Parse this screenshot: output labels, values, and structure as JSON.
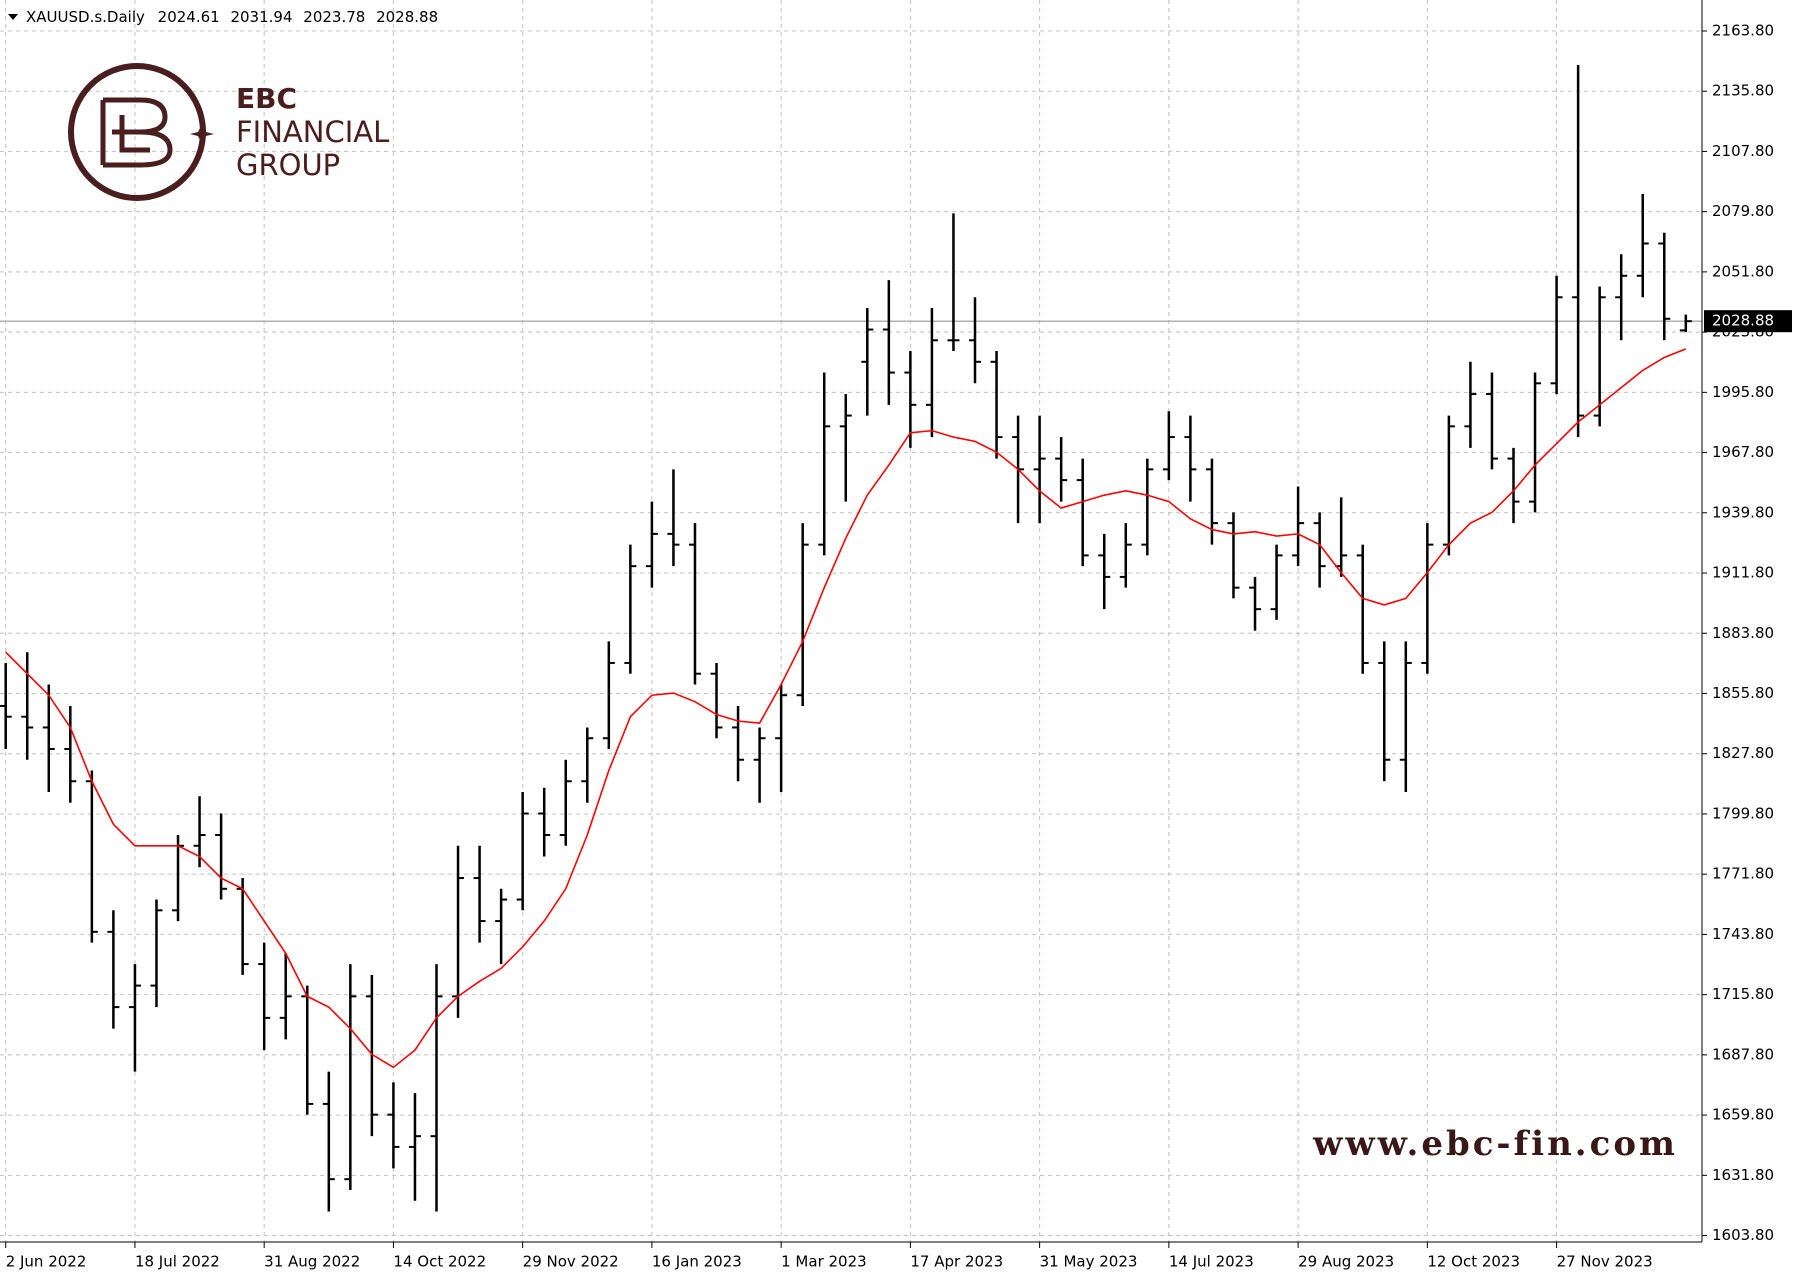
{
  "chart_data": {
    "type": "ohlc",
    "symbol": "XAUUSD.s.Daily",
    "categories": [
      "2 Jun 2022",
      null,
      null,
      null,
      null,
      null,
      "18 Jul 2022",
      null,
      null,
      null,
      null,
      null,
      "31 Aug 2022",
      null,
      null,
      null,
      null,
      null,
      "14 Oct 2022",
      null,
      null,
      null,
      null,
      null,
      "29 Nov 2022",
      null,
      null,
      null,
      null,
      null,
      "16 Jan 2023",
      null,
      null,
      null,
      null,
      null,
      "1 Mar 2023",
      null,
      null,
      null,
      null,
      null,
      "17 Apr 2023",
      null,
      null,
      null,
      null,
      null,
      "31 May 2023",
      null,
      null,
      null,
      null,
      null,
      "14 Jul 2023",
      null,
      null,
      null,
      null,
      null,
      "29 Aug 2023",
      null,
      null,
      null,
      null,
      null,
      "12 Oct 2023",
      null,
      null,
      null,
      null,
      null,
      "27 Nov 2023",
      null,
      null,
      null,
      null,
      null,
      null
    ],
    "ohlc": {
      "color": "#000000",
      "open": [
        1850,
        1845,
        1840,
        1830,
        1815,
        1745,
        1710,
        1720,
        1755,
        1785,
        1790,
        1765,
        1730,
        1705,
        1715,
        1665,
        1630,
        1715,
        1660,
        1645,
        1650,
        1715,
        1770,
        1750,
        1760,
        1800,
        1790,
        1815,
        1835,
        1870,
        1915,
        1930,
        1925,
        1865,
        1840,
        1825,
        1835,
        1855,
        1925,
        1980,
        2010,
        2025,
        2005,
        1990,
        2020,
        2020,
        2010,
        1975,
        1960,
        1965,
        1955,
        1920,
        1910,
        1925,
        1960,
        1975,
        1960,
        1935,
        1905,
        1895,
        1920,
        1935,
        1915,
        1920,
        1870,
        1825,
        1870,
        1925,
        1980,
        1995,
        1965,
        1945,
        2000,
        2040,
        1985,
        2040,
        2050,
        2065,
        2024.61
      ],
      "high": [
        1870,
        1875,
        1860,
        1850,
        1820,
        1755,
        1730,
        1760,
        1790,
        1808,
        1800,
        1770,
        1740,
        1735,
        1720,
        1680,
        1730,
        1725,
        1675,
        1670,
        1730,
        1785,
        1785,
        1765,
        1810,
        1812,
        1825,
        1840,
        1880,
        1925,
        1945,
        1960,
        1935,
        1870,
        1850,
        1840,
        1860,
        1935,
        2005,
        1995,
        2035,
        2048,
        2015,
        2035,
        2079,
        2040,
        2015,
        1985,
        1985,
        1975,
        1965,
        1930,
        1935,
        1965,
        1987,
        1985,
        1965,
        1940,
        1910,
        1925,
        1952,
        1940,
        1947,
        1925,
        1880,
        1880,
        1935,
        1985,
        2010,
        2005,
        1970,
        2005,
        2050,
        2148,
        2045,
        2060,
        2088,
        2070,
        2031.94
      ],
      "low": [
        1830,
        1825,
        1810,
        1805,
        1740,
        1700,
        1680,
        1710,
        1750,
        1775,
        1760,
        1725,
        1690,
        1695,
        1660,
        1615,
        1625,
        1650,
        1635,
        1620,
        1615,
        1705,
        1740,
        1730,
        1755,
        1780,
        1785,
        1805,
        1830,
        1865,
        1905,
        1915,
        1860,
        1835,
        1815,
        1805,
        1810,
        1850,
        1920,
        1945,
        1985,
        1990,
        1970,
        1975,
        2015,
        2000,
        1965,
        1935,
        1935,
        1945,
        1915,
        1895,
        1905,
        1920,
        1955,
        1945,
        1925,
        1900,
        1885,
        1890,
        1915,
        1905,
        1910,
        1865,
        1815,
        1810,
        1865,
        1920,
        1970,
        1960,
        1935,
        1940,
        1995,
        1975,
        1980,
        2020,
        2040,
        2020,
        2023.78
      ],
      "close": [
        1845,
        1840,
        1830,
        1815,
        1745,
        1710,
        1720,
        1755,
        1785,
        1790,
        1765,
        1730,
        1705,
        1715,
        1665,
        1630,
        1715,
        1660,
        1645,
        1650,
        1715,
        1770,
        1750,
        1760,
        1800,
        1790,
        1815,
        1835,
        1870,
        1915,
        1930,
        1925,
        1865,
        1840,
        1825,
        1835,
        1855,
        1925,
        1980,
        1985,
        2025,
        2005,
        1990,
        2020,
        2020,
        2010,
        1975,
        1960,
        1965,
        1955,
        1920,
        1910,
        1925,
        1960,
        1975,
        1960,
        1935,
        1905,
        1895,
        1920,
        1935,
        1915,
        1920,
        1870,
        1825,
        1870,
        1925,
        1980,
        1995,
        1965,
        1945,
        2000,
        2040,
        1985,
        2040,
        2050,
        2065,
        2030,
        2028.88
      ]
    },
    "ma": {
      "color": "#ff0000",
      "values": [
        1875,
        1865,
        1855,
        1840,
        1815,
        1795,
        1785,
        1785,
        1785,
        1780,
        1770,
        1765,
        1750,
        1735,
        1715,
        1710,
        1700,
        1688,
        1682,
        1690,
        1705,
        1715,
        1722,
        1728,
        1738,
        1750,
        1765,
        1790,
        1820,
        1845,
        1855,
        1856,
        1852,
        1846,
        1843,
        1842,
        1860,
        1880,
        1905,
        1928,
        1948,
        1962,
        1977,
        1978,
        1975,
        1973,
        1968,
        1960,
        1950,
        1942,
        1945,
        1948,
        1950,
        1948,
        1945,
        1937,
        1932,
        1930,
        1931,
        1929,
        1930,
        1925,
        1912,
        1900,
        1897,
        1900,
        1912,
        1925,
        1935,
        1940,
        1950,
        1962,
        1972,
        1982,
        1990,
        1998,
        2006,
        2012,
        2016
      ]
    },
    "ylim": [
      1600.8,
      2178.2
    ],
    "yticks": [
      {
        "value": 1603.8,
        "label": "1603.80"
      },
      {
        "value": 1631.8,
        "label": "1631.80"
      },
      {
        "value": 1659.8,
        "label": "1659.80"
      },
      {
        "value": 1687.8,
        "label": "1687.80"
      },
      {
        "value": 1715.8,
        "label": "1715.80"
      },
      {
        "value": 1743.8,
        "label": "1743.80"
      },
      {
        "value": 1771.8,
        "label": "1771.80"
      },
      {
        "value": 1799.8,
        "label": "1799.80"
      },
      {
        "value": 1827.8,
        "label": "1827.80"
      },
      {
        "value": 1855.8,
        "label": "1855.80"
      },
      {
        "value": 1883.8,
        "label": "1883.80"
      },
      {
        "value": 1911.8,
        "label": "1911.80"
      },
      {
        "value": 1939.8,
        "label": "1939.80"
      },
      {
        "value": 1967.8,
        "label": "1967.80"
      },
      {
        "value": 1995.8,
        "label": "1995.80"
      },
      {
        "value": 2023.8,
        "label": "2023.80"
      },
      {
        "value": 2051.8,
        "label": "2051.80"
      },
      {
        "value": 2079.8,
        "label": "2079.80"
      },
      {
        "value": 2107.8,
        "label": "2107.80"
      },
      {
        "value": 2135.8,
        "label": "2135.80"
      },
      {
        "value": 2163.8,
        "label": "2163.80"
      }
    ],
    "grid": true,
    "watermark": {
      "brand": "EBC",
      "line2": "FINANCIAL",
      "line3": "GROUP",
      "url": "www.ebc-fin.com"
    }
  }
}
